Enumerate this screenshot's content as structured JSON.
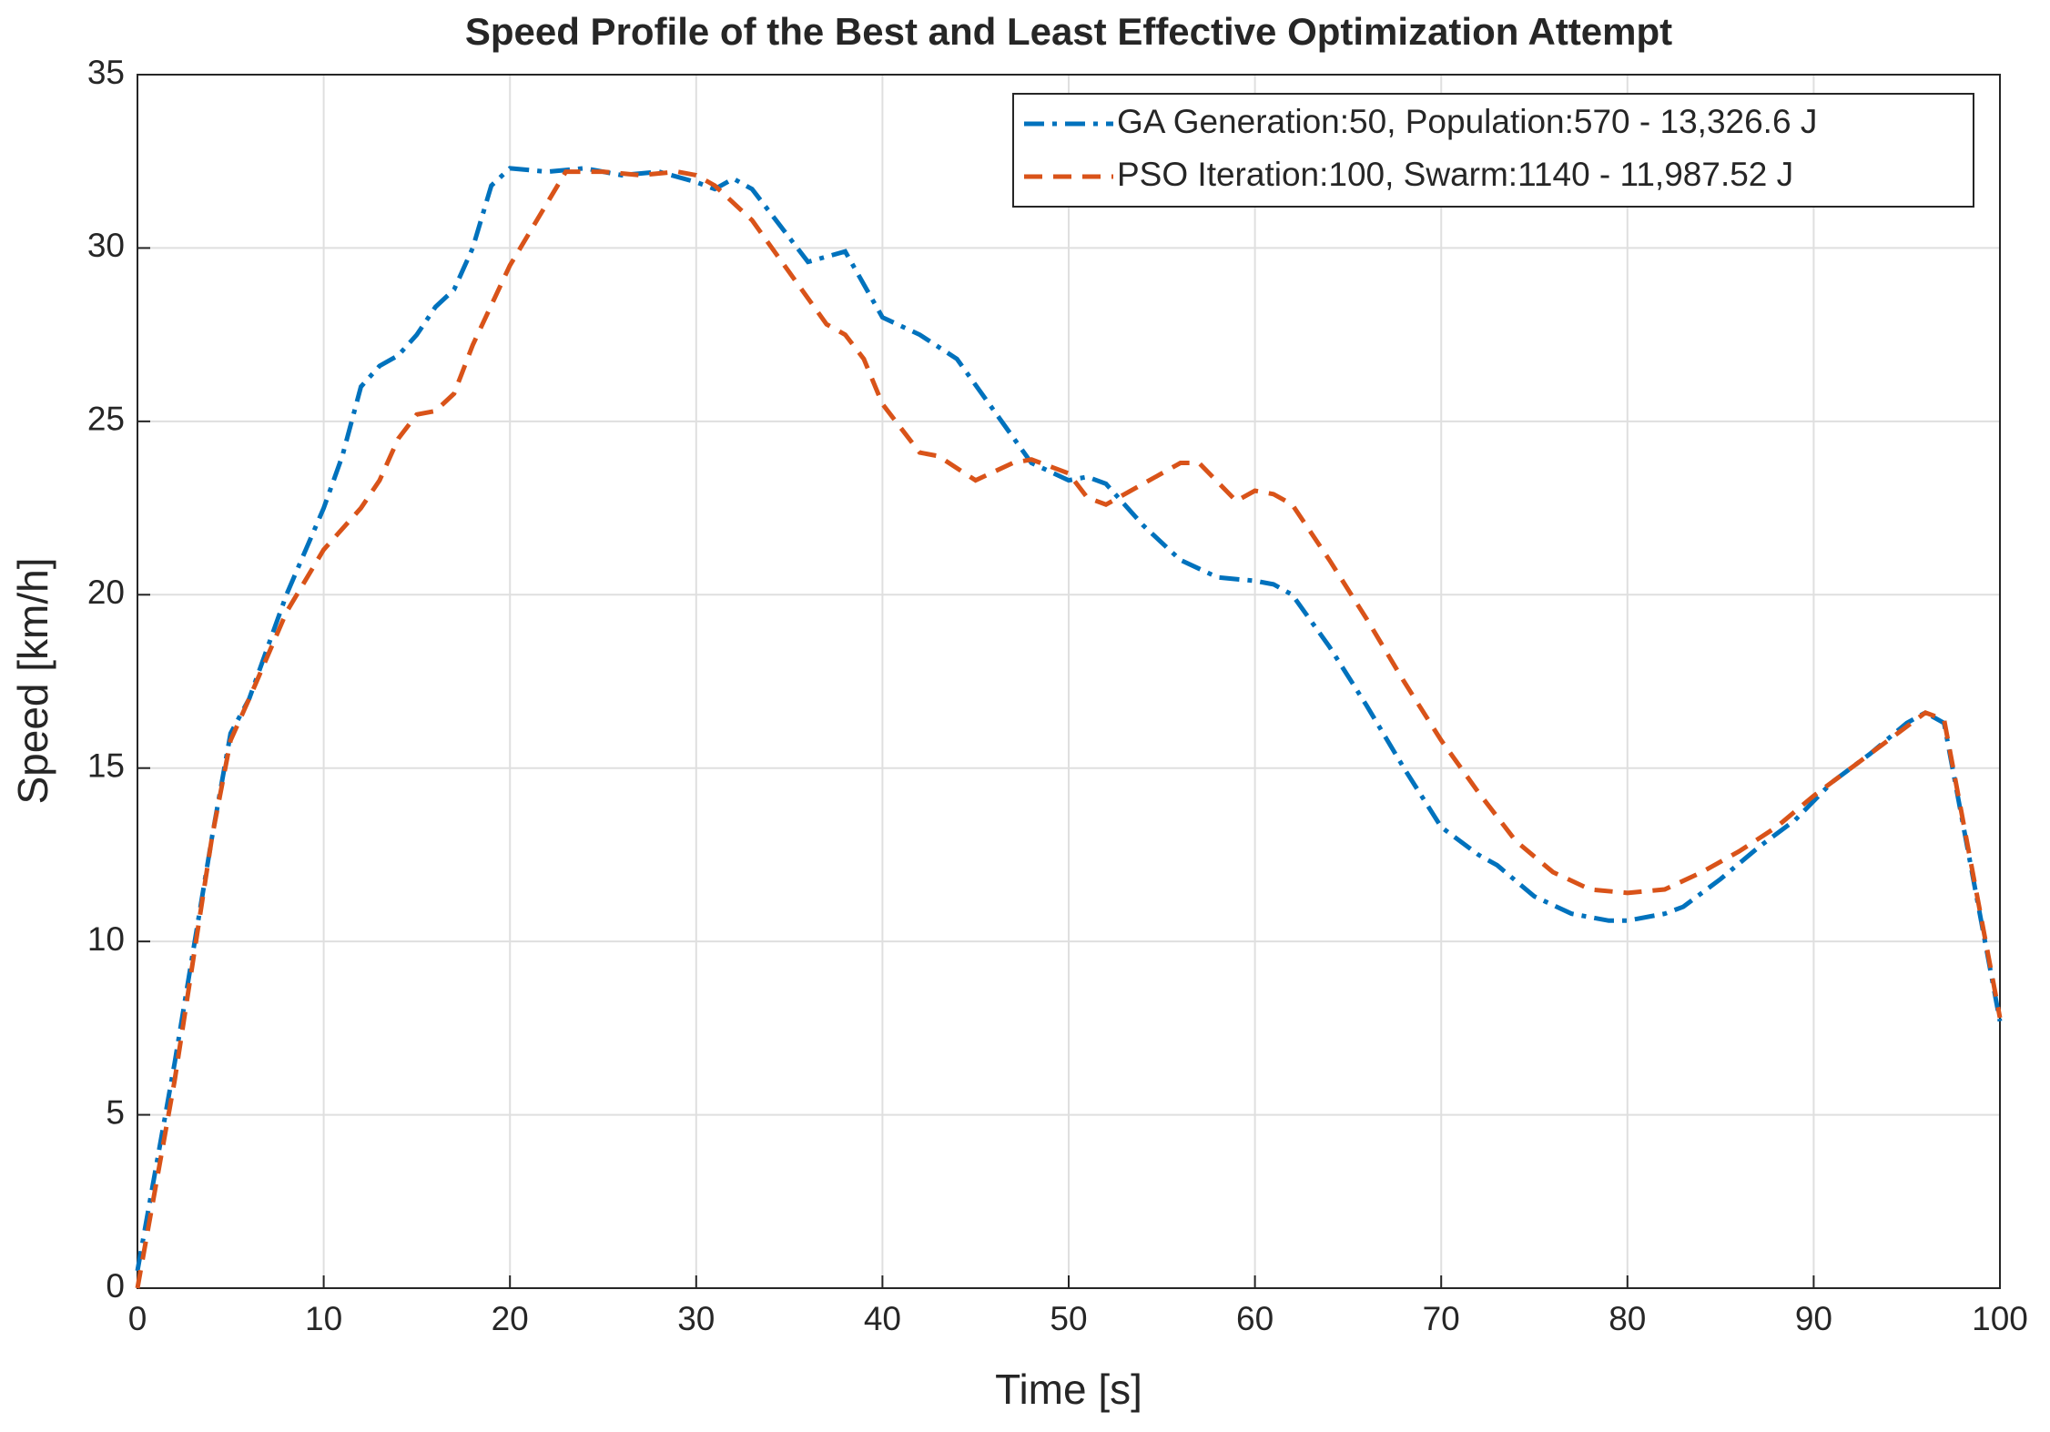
{
  "chart_data": {
    "type": "line",
    "title": "Speed Profile of the Best and Least Effective Optimization Attempt",
    "xlabel": "Time [s]",
    "ylabel": "Speed [km/h]",
    "xlim": [
      0,
      100
    ],
    "xticks": [
      0,
      10,
      20,
      30,
      40,
      50,
      60,
      70,
      80,
      90,
      100
    ],
    "ylim": [
      0,
      35
    ],
    "yticks": [
      0,
      5,
      10,
      15,
      20,
      25,
      30,
      35
    ],
    "grid": true,
    "legend": "upper right",
    "series": [
      {
        "name": "GA Generation:50, Population:570 - 13,326.6 J",
        "color": "#0072bd",
        "style": "dashdot",
        "x": [
          0,
          2,
          4,
          5,
          6,
          8,
          10,
          11,
          12,
          13,
          14,
          15,
          16,
          17,
          18,
          19,
          20,
          22,
          24,
          26,
          28,
          30,
          31,
          32,
          33,
          34,
          36,
          38,
          40,
          42,
          44,
          46,
          48,
          50,
          51,
          52,
          54,
          56,
          58,
          60,
          61,
          62,
          64,
          66,
          68,
          70,
          72,
          73,
          75,
          77,
          79,
          80,
          82,
          83,
          85,
          87,
          89,
          91,
          93,
          95,
          96,
          97,
          100
        ],
        "values": [
          0.5,
          6.5,
          13,
          16,
          17,
          20,
          22.5,
          24,
          26,
          26.6,
          26.9,
          27.5,
          28.3,
          28.8,
          30,
          31.8,
          32.3,
          32.2,
          32.3,
          32.1,
          32.2,
          31.9,
          31.7,
          32,
          31.7,
          31,
          29.6,
          29.9,
          28,
          27.5,
          26.8,
          25.3,
          23.8,
          23.3,
          23.4,
          23.2,
          22,
          21,
          20.5,
          20.4,
          20.3,
          20,
          18.5,
          16.8,
          15,
          13.3,
          12.5,
          12.2,
          11.3,
          10.8,
          10.6,
          10.6,
          10.8,
          11,
          11.8,
          12.7,
          13.5,
          14.6,
          15.4,
          16.3,
          16.6,
          16.3,
          7.7
        ]
      },
      {
        "name": "PSO Iteration:100, Swarm:1140 - 11,987.52 J",
        "color": "#d95319",
        "style": "dashed",
        "x": [
          0,
          2,
          4,
          5,
          6,
          8,
          10,
          12,
          13,
          14,
          15,
          16,
          17,
          18,
          20,
          22,
          23,
          25,
          27,
          29,
          30,
          31,
          33,
          35,
          37,
          38,
          39,
          40,
          42,
          43,
          45,
          47,
          48,
          50,
          51,
          52,
          54,
          56,
          57,
          59,
          60,
          61,
          62,
          64,
          66,
          68,
          70,
          72,
          74,
          76,
          78,
          80,
          82,
          84,
          86,
          88,
          90,
          92,
          94,
          96,
          97,
          100
        ],
        "values": [
          0,
          6,
          13,
          15.8,
          17,
          19.5,
          21.3,
          22.5,
          23.3,
          24.5,
          25.2,
          25.3,
          25.8,
          27.2,
          29.5,
          31.3,
          32.2,
          32.2,
          32.1,
          32.2,
          32.1,
          31.8,
          30.8,
          29.3,
          27.8,
          27.5,
          26.8,
          25.5,
          24.1,
          24,
          23.3,
          23.8,
          23.9,
          23.5,
          22.8,
          22.6,
          23.2,
          23.8,
          23.8,
          22.7,
          23,
          22.9,
          22.6,
          21,
          19.3,
          17.5,
          15.8,
          14.3,
          12.9,
          12,
          11.5,
          11.4,
          11.5,
          12,
          12.6,
          13.3,
          14.2,
          15,
          15.8,
          16.6,
          16.4,
          7.8
        ]
      }
    ]
  }
}
